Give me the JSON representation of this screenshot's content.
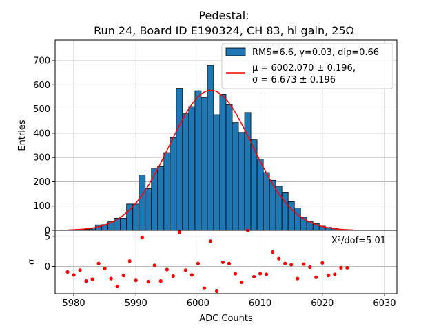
{
  "chart_data": {
    "type": "bar",
    "title_line1": "Pedestal:",
    "title_line2": "Run 24, Board ID E190324, CH 83, hi gain, 25Ω",
    "xlabel": "ADC Counts",
    "ylabel": "Entries",
    "resid_ylabel": "σ",
    "xlim": [
      5977,
      6032
    ],
    "ylim": [
      0,
      785
    ],
    "resid_ylim": [
      -4.5,
      6.0
    ],
    "x_ticks": [
      5980,
      5990,
      6000,
      6010,
      6020,
      6030
    ],
    "y_ticks": [
      0,
      100,
      200,
      300,
      400,
      500,
      600,
      700
    ],
    "resid_y_ticks": [
      0,
      5
    ],
    "grid": true,
    "legend_position": "top-right",
    "legend": {
      "hist_label": "RMS=6.6, γ=0.03, dip=0.66",
      "fit_label_line1": "μ = 6002.070 ± 0.196,",
      "fit_label_line2": "σ = 6.673 ± 0.196"
    },
    "chi2_label": "X²/dof=5.01",
    "colors": {
      "bars": "#1f77b4",
      "fit": "#ff0000",
      "residuals": "#ff0000",
      "edge": "#000000"
    },
    "bin_width": 1,
    "bins": {
      "x": [
        5979,
        5980,
        5981,
        5982,
        5983,
        5984,
        5985,
        5986,
        5987,
        5988,
        5989,
        5990,
        5991,
        5992,
        5993,
        5994,
        5995,
        5996,
        5997,
        5998,
        5999,
        6000,
        6001,
        6002,
        6003,
        6004,
        6005,
        6006,
        6007,
        6008,
        6009,
        6010,
        6011,
        6012,
        6013,
        6014,
        6015,
        6016,
        6017,
        6018,
        6019,
        6020,
        6021,
        6022,
        6023,
        6024
      ],
      "values": [
        1,
        2,
        4,
        4,
        6,
        22,
        23,
        35,
        50,
        50,
        108,
        108,
        228,
        172,
        256,
        263,
        320,
        382,
        585,
        482,
        510,
        575,
        548,
        680,
        476,
        560,
        518,
        443,
        403,
        485,
        375,
        293,
        238,
        206,
        182,
        155,
        118,
        92,
        54,
        35,
        28,
        17,
        12,
        7,
        3,
        1
      ]
    },
    "fit": {
      "mu": 6002.07,
      "sigma": 6.673,
      "amplitude": 577
    },
    "residuals": {
      "x": [
        5979,
        5980,
        5981,
        5982,
        5983,
        5984,
        5985,
        5986,
        5987,
        5988,
        5989,
        5990,
        5991,
        5992,
        5993,
        5994,
        5995,
        5996,
        5997,
        5998,
        5999,
        6000,
        6001,
        6002,
        6003,
        6004,
        6005,
        6006,
        6007,
        6008,
        6009,
        6010,
        6011,
        6012,
        6013,
        6014,
        6015,
        6016,
        6017,
        6018,
        6019,
        6020,
        6021,
        6022,
        6023,
        6024
      ],
      "values": [
        -0.9,
        -1.4,
        -0.6,
        -2.4,
        -2.1,
        0.5,
        -0.3,
        -2.0,
        -3.3,
        -1.5,
        0.9,
        -2.3,
        4.8,
        -2.5,
        0.2,
        -2.4,
        -0.5,
        -1.6,
        5.7,
        -0.6,
        -1.4,
        0.5,
        -3.6,
        4.2,
        -4.1,
        0.7,
        0.5,
        -1.2,
        -2.6,
        6.0,
        -1.7,
        -1.2,
        -1.3,
        2.4,
        1.3,
        0.5,
        0.3,
        -2.0,
        0.4,
        -0.1,
        -1.8,
        0.6,
        -1.5,
        -1.3,
        -0.2,
        -0.2
      ]
    }
  }
}
